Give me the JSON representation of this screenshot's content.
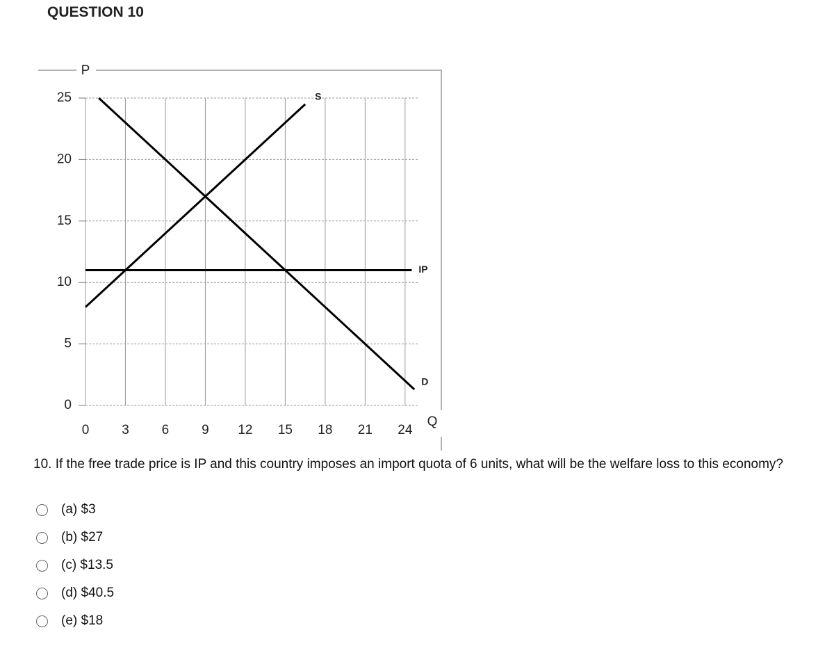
{
  "header": {
    "title": "QUESTION 10"
  },
  "chart_data": {
    "type": "line",
    "x_label": "Q",
    "y_label": "P",
    "xlim": [
      0,
      25
    ],
    "ylim": [
      0,
      25
    ],
    "xticks": [
      0,
      3,
      6,
      9,
      12,
      15,
      18,
      21,
      24
    ],
    "yticks": [
      0,
      5,
      10,
      15,
      20,
      25
    ],
    "grid": true,
    "series": [
      {
        "name": "S",
        "color": "#000000",
        "x": [
          0,
          16.5
        ],
        "values": [
          8,
          24.5
        ]
      },
      {
        "name": "D",
        "color": "#000000",
        "x": [
          1,
          24.7
        ],
        "values": [
          25,
          1.3
        ]
      },
      {
        "name": "IP",
        "color": "#000000",
        "x": [
          0,
          24.5
        ],
        "values": [
          11,
          11
        ]
      }
    ]
  },
  "question": {
    "text": "10. If the free trade price is IP and this country imposes an import quota of 6 units, what will be the welfare loss to this economy?",
    "options": [
      "(a) $3",
      "(b) $27",
      "(c) $13.5",
      "(d) $40.5",
      "(e) $18"
    ]
  }
}
